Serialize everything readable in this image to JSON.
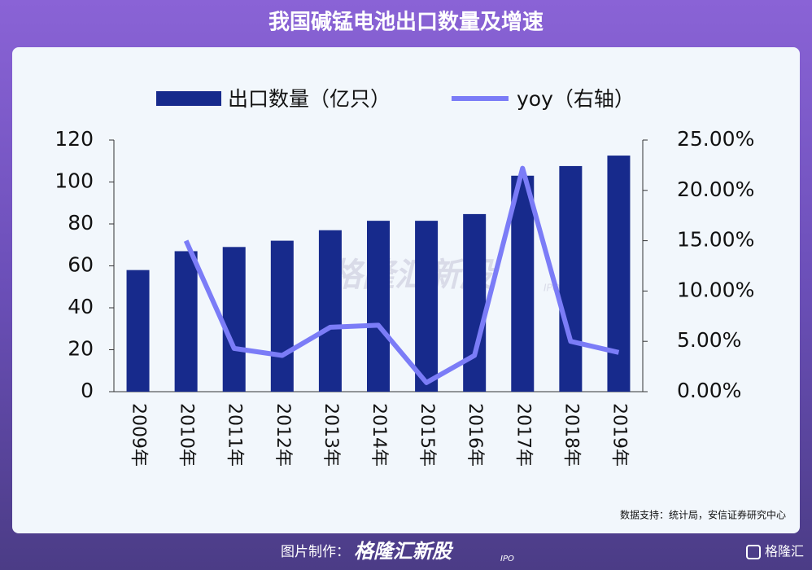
{
  "chart_data": {
    "type": "bar-line",
    "title": "我国碱锰电池出口数量及增速",
    "source": "数据支持：统计局，安信证券研究中心",
    "categories": [
      "2009年",
      "2010年",
      "2011年",
      "2012年",
      "2013年",
      "2014年",
      "2015年",
      "2016年",
      "2017年",
      "2018年",
      "2019年"
    ],
    "series": [
      {
        "name": "出口数量（亿只）",
        "type": "bar",
        "color": "#172a8c",
        "values": [
          58,
          67,
          69,
          72,
          77,
          81.5,
          81.5,
          84.7,
          103,
          107.6,
          112.6
        ]
      },
      {
        "name": "yoy（右轴）",
        "type": "line",
        "axis": "y2",
        "color": "#7b7cf7",
        "values": [
          null,
          15.0,
          4.3,
          3.6,
          6.4,
          6.6,
          0.9,
          3.6,
          22.2,
          5.0,
          3.9
        ]
      }
    ],
    "ylim": [
      0,
      120
    ],
    "yticks": [
      0,
      20,
      40,
      60,
      80,
      100,
      120
    ],
    "y2lim": [
      0,
      25
    ],
    "y2ticks": [
      {
        "value": 0,
        "label": "0.00%"
      },
      {
        "value": 5,
        "label": "5.00%"
      },
      {
        "value": 10,
        "label": "10.00%"
      },
      {
        "value": 15,
        "label": "15.00%"
      },
      {
        "value": 20,
        "label": "20.00%"
      },
      {
        "value": 25,
        "label": "25.00%"
      }
    ],
    "grid": false
  },
  "watermark": {
    "brand": "格隆汇新股",
    "tag": "IPO"
  },
  "footer": {
    "label": "图片制作：",
    "brand": "格隆汇新股",
    "tag": "IPO",
    "logo": "格隆汇"
  }
}
